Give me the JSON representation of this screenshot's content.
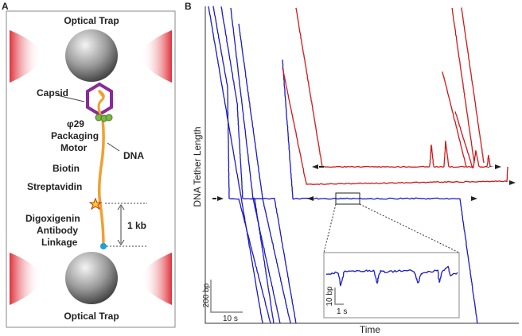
{
  "panel_a": {
    "label": "A",
    "top_trap": "Optical Trap",
    "capsid": "Capsid",
    "motor": [
      "φ29",
      "Packaging",
      "Motor"
    ],
    "dna": "DNA",
    "biotin": "Biotin",
    "streptavidin": "Streptavidin",
    "linkage": [
      "Digoxigenin",
      "Antibody",
      "Linkage"
    ],
    "length": "1 kb",
    "bottom_trap": "Optical Trap"
  },
  "panel_b": {
    "label": "B",
    "y_label": "DNA Tether Length",
    "x_label": "Time",
    "scale_bar": {
      "y": "200 bp",
      "x": "10 s"
    },
    "inset_scale_bar": {
      "y": "10 bp",
      "x": "1 s"
    }
  }
}
